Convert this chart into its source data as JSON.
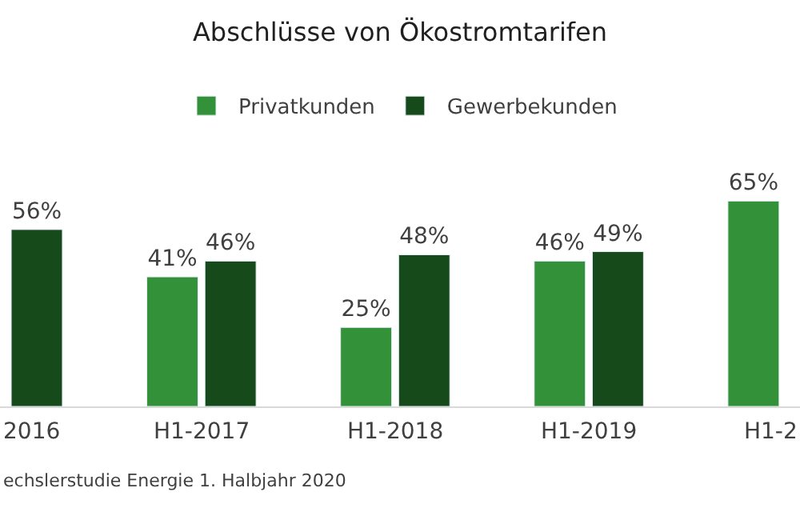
{
  "chart_data": {
    "type": "bar",
    "title": "Abschlüsse von Ökostromtarifen",
    "categories": [
      "2016",
      "H1-2017",
      "H1-2018",
      "H1-2019",
      "H1-2"
    ],
    "series": [
      {
        "name": "Privatkunden",
        "color": "#33913a",
        "values": [
          null,
          41,
          25,
          46,
          65
        ],
        "value_labels": [
          null,
          "41%",
          "25%",
          "46%",
          "65%"
        ]
      },
      {
        "name": "Gewerbekunden",
        "color": "#174a1b",
        "values": [
          56,
          46,
          48,
          49,
          null
        ],
        "value_labels": [
          "56%",
          "46%",
          "48%",
          "49%",
          null
        ]
      }
    ],
    "legend": "top",
    "annotations": [
      "echslerstudie Energie 1. Halbjahr 2020"
    ]
  }
}
